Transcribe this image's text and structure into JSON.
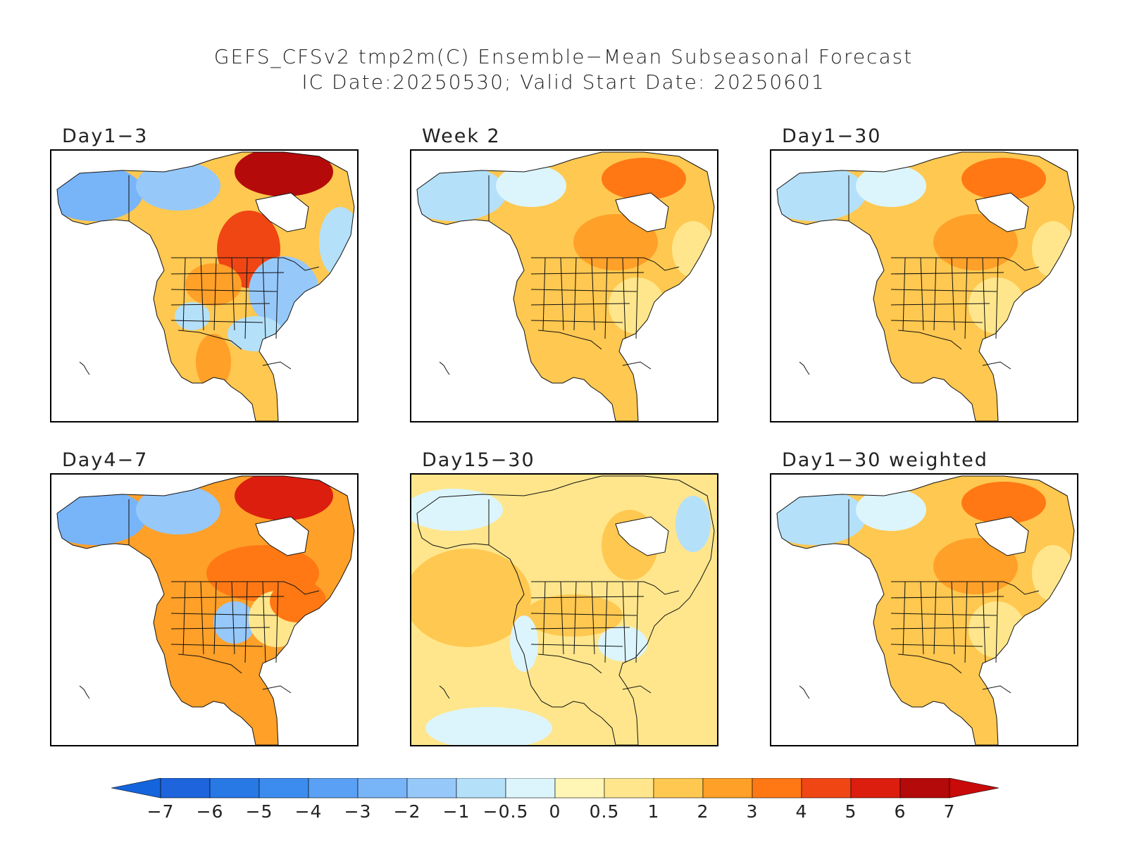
{
  "title_line1": "GEFS_CFSv2 tmp2m(C) Ensemble−Mean Subseasonal Forecast",
  "title_line2": "IC Date:20250530; Valid Start Date: 20250601",
  "panels": [
    {
      "label": "Day1−3",
      "pattern": "cold-north-warm-central"
    },
    {
      "label": "Week 2",
      "pattern": "mild-warm"
    },
    {
      "label": "Day1−30",
      "pattern": "mild-warm"
    },
    {
      "label": "Day4−7",
      "pattern": "warm-east"
    },
    {
      "label": "Day15−30",
      "pattern": "ocean-warm"
    },
    {
      "label": "Day1−30 weighted",
      "pattern": "mild-warm"
    }
  ],
  "colorbar": {
    "ticks": [
      "−7",
      "−6",
      "−5",
      "−4",
      "−3",
      "−2",
      "−1",
      "−0.5",
      "0",
      "0.5",
      "1",
      "2",
      "3",
      "4",
      "5",
      "6",
      "7"
    ],
    "colors": [
      "#1e64dc",
      "#2878e6",
      "#3c8cf0",
      "#5aa0f5",
      "#78b4f8",
      "#96c8fa",
      "#b4e0fa",
      "#dcf5fc",
      "#fff5b4",
      "#ffe68c",
      "#ffc850",
      "#ffa028",
      "#ff7814",
      "#f04614",
      "#dc1e0f",
      "#b40a0a"
    ],
    "end_left": "#1464dc",
    "end_right": "#c80a0a"
  }
}
